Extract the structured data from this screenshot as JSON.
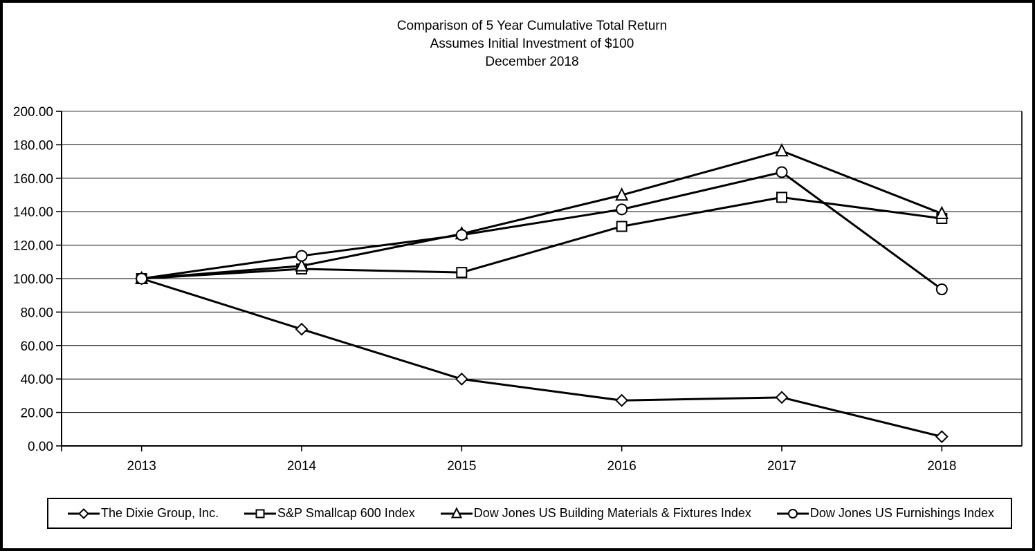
{
  "title": {
    "line1": "Comparison of 5 Year Cumulative Total Return",
    "line2": "Assumes Initial Investment of $100",
    "line3": "December 2018"
  },
  "chart_data": {
    "type": "line",
    "categories": [
      "2013",
      "2014",
      "2015",
      "2016",
      "2017",
      "2018"
    ],
    "series": [
      {
        "name": "The Dixie Group, Inc.",
        "marker": "diamond",
        "values": [
          100.0,
          69.76,
          39.94,
          27.18,
          28.99,
          5.53
        ]
      },
      {
        "name": "S&P Smallcap 600 Index",
        "marker": "square",
        "values": [
          100.0,
          105.76,
          103.67,
          131.2,
          148.58,
          135.96
        ]
      },
      {
        "name": "Dow Jones US Building Materials & Fixtures Index",
        "marker": "triangle",
        "values": [
          100.0,
          107.59,
          126.77,
          149.92,
          176.33,
          138.87
        ]
      },
      {
        "name": "Dow Jones US Furnishings Index",
        "marker": "circle",
        "values": [
          100.0,
          113.61,
          126.09,
          141.37,
          163.63,
          93.57
        ]
      }
    ],
    "xlabel": "",
    "ylabel": "",
    "ylim": [
      0,
      200
    ],
    "y_tick_step": 20,
    "y_tick_labels": [
      "0.00",
      "20.00",
      "40.00",
      "60.00",
      "80.00",
      "100.00",
      "120.00",
      "140.00",
      "160.00",
      "180.00",
      "200.00"
    ],
    "grid": true,
    "legend_position": "bottom",
    "line_color": "#000000",
    "marker_fill": "#ffffff",
    "border_color": "#000000",
    "plot_top_border_color": "#7f7f7f"
  }
}
